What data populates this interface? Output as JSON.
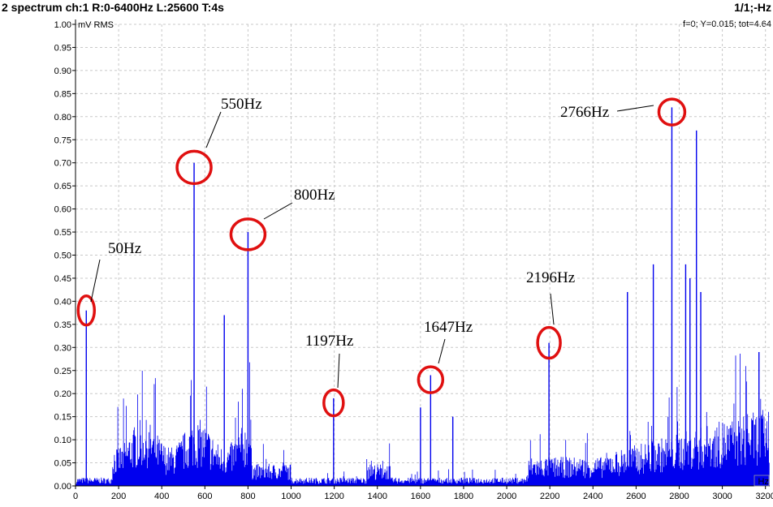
{
  "header": {
    "title": "2 spectrum ch:1 R:0-6400Hz L:25600 T:4s",
    "page": "1/1;-Hz",
    "info": "f=0; Y=0.015; tot=4.64"
  },
  "colors": {
    "series": "#0000ee",
    "marker": "#e01010",
    "grid": "#c8c8c8"
  },
  "chart_data": {
    "type": "line",
    "ylabel": "mV RMS",
    "xlabel": "Hz",
    "xlim": [
      0,
      3220
    ],
    "ylim": [
      0,
      1.0
    ],
    "x_ticks": [
      0,
      200,
      400,
      600,
      800,
      1000,
      1200,
      1400,
      1600,
      1800,
      2000,
      2200,
      2400,
      2600,
      2800,
      3000,
      3200
    ],
    "x_tick_labels": [
      "0",
      "200",
      "400",
      "600",
      "800",
      "1000",
      "1200",
      "1400",
      "1600",
      "1800",
      "2000",
      "2200",
      "2400",
      "2600",
      "2800",
      "3000",
      "3200"
    ],
    "y_ticks": [
      0,
      0.05,
      0.1,
      0.15,
      0.2,
      0.25,
      0.3,
      0.35,
      0.4,
      0.45,
      0.5,
      0.55,
      0.6,
      0.65,
      0.7,
      0.75,
      0.8,
      0.85,
      0.9,
      0.95,
      1.0
    ],
    "y_tick_labels": [
      "0.00",
      "0.05",
      "0.10",
      "0.15",
      "0.20",
      "0.25",
      "0.30",
      "0.35",
      "0.40",
      "0.45",
      "0.50",
      "0.55",
      "0.60",
      "0.65",
      "0.70",
      "0.75",
      "0.80",
      "0.85",
      "0.90",
      "0.95",
      "1.00"
    ],
    "grid": true,
    "peaks": [
      {
        "x": 50,
        "y": 0.38
      },
      {
        "x": 550,
        "y": 0.7
      },
      {
        "x": 690,
        "y": 0.37
      },
      {
        "x": 800,
        "y": 0.55
      },
      {
        "x": 1197,
        "y": 0.19
      },
      {
        "x": 1600,
        "y": 0.17
      },
      {
        "x": 1647,
        "y": 0.24
      },
      {
        "x": 1750,
        "y": 0.15
      },
      {
        "x": 2196,
        "y": 0.31
      },
      {
        "x": 2560,
        "y": 0.42
      },
      {
        "x": 2680,
        "y": 0.48
      },
      {
        "x": 2766,
        "y": 0.82
      },
      {
        "x": 2830,
        "y": 0.48
      },
      {
        "x": 2850,
        "y": 0.45
      },
      {
        "x": 2880,
        "y": 0.77
      },
      {
        "x": 2900,
        "y": 0.42
      },
      {
        "x": 3170,
        "y": 0.29
      }
    ],
    "annotations": [
      {
        "label": "50Hz",
        "x": 50,
        "y": 0.38
      },
      {
        "label": "550Hz",
        "x": 550,
        "y": 0.69
      },
      {
        "label": "800Hz",
        "x": 800,
        "y": 0.545
      },
      {
        "label": "1197Hz",
        "x": 1197,
        "y": 0.18
      },
      {
        "label": "1647Hz",
        "x": 1647,
        "y": 0.23
      },
      {
        "label": "2196Hz",
        "x": 2196,
        "y": 0.31
      },
      {
        "label": "2766Hz",
        "x": 2766,
        "y": 0.81
      }
    ]
  }
}
